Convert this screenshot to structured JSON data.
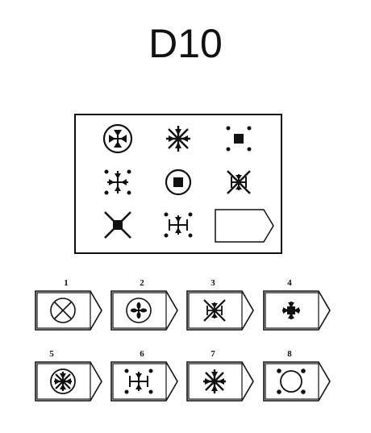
{
  "title": "D10",
  "puzzle": {
    "cells": [
      {
        "figure": "circle-with-inward-arrows"
      },
      {
        "figure": "asterisk-with-arrows"
      },
      {
        "figure": "square-with-corner-dots"
      },
      {
        "figure": "cross-arrows-with-dots"
      },
      {
        "figure": "circle-with-square"
      },
      {
        "figure": "boxed-x-with-arrows"
      },
      {
        "figure": "x-with-square"
      },
      {
        "figure": "cross-arrows-with-dots-and-bars"
      },
      {
        "figure": "blank-answer-tag"
      }
    ]
  },
  "answers": [
    {
      "number": "1",
      "figure": "circle-with-x"
    },
    {
      "number": "2",
      "figure": "circle-with-cross-arrows"
    },
    {
      "number": "3",
      "figure": "boxed-x-with-arrows"
    },
    {
      "number": "4",
      "figure": "bold-plus-arrows"
    },
    {
      "number": "5",
      "figure": "circle-with-asterisk"
    },
    {
      "number": "6",
      "figure": "cross-arrows-with-dots-and-bars"
    },
    {
      "number": "7",
      "figure": "asterisk-with-arrows"
    },
    {
      "number": "8",
      "figure": "circle-with-corner-dots"
    }
  ]
}
